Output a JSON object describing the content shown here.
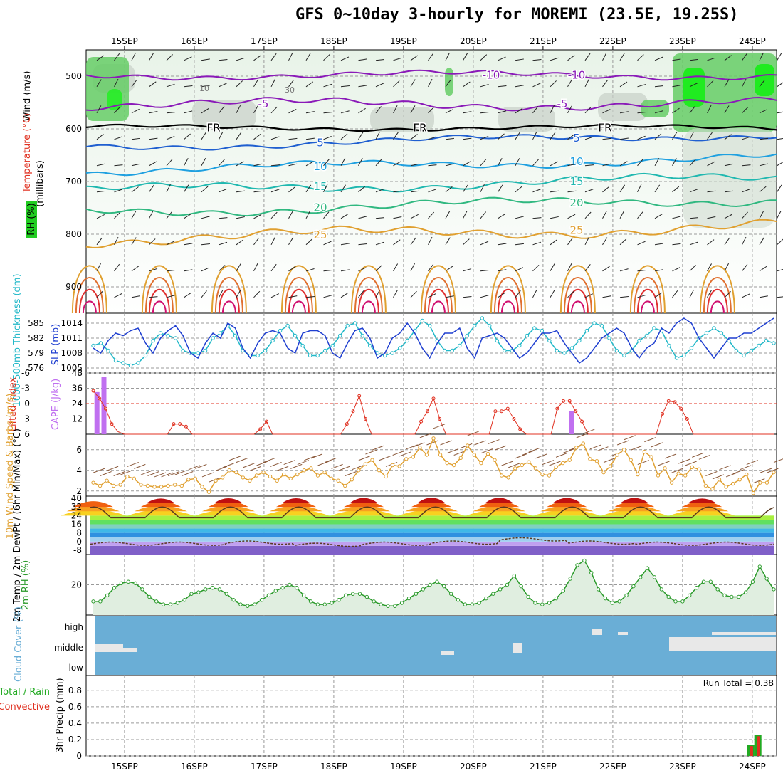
{
  "title": "GFS 0~10day 3-hourly for MOREMI (23.5E, 19.25S)",
  "colors": {
    "rh_green": "#22cc22",
    "rh_gray": "#bbbbbb",
    "slp": "#1f3fd0",
    "thickness": "#22b8c8",
    "lifted_index": "#e03020",
    "cape": "#c070f0",
    "wind": "#e0a030",
    "rh2m": "#2a9a2a",
    "cloud": "#6aaed6",
    "precip_total": "#22aa22",
    "precip_conv": "#e03020"
  },
  "chart_data": [
    {
      "id": "upper-air",
      "type": "contour",
      "x_dates": [
        "15SEP",
        "16SEP",
        "17SEP",
        "18SEP",
        "19SEP",
        "20SEP",
        "21SEP",
        "22SEP",
        "23SEP",
        "24SEP"
      ],
      "y_ticks": [
        500,
        600,
        700,
        800,
        900
      ],
      "ylim": [
        450,
        950
      ],
      "ylabel": "(millibars)",
      "legend": [
        "Wind (m/s)",
        "Temperature (°C)",
        "RH (%)"
      ],
      "temperature_contours": [
        {
          "label": "-10",
          "color": "#8a1ab8",
          "p0": 498,
          "wave": 6
        },
        {
          "label": "-5",
          "color": "#8a1ab8",
          "p0": 553,
          "wave": 8
        },
        {
          "label": "FR",
          "color": "#000000",
          "p0": 598,
          "wave": 4
        },
        {
          "label": "5",
          "color": "#1f5fd0",
          "p0": 635,
          "wave": 6
        },
        {
          "label": "10",
          "color": "#1fa0e0",
          "p0": 680,
          "wave": 7
        },
        {
          "label": "15",
          "color": "#20b8b0",
          "p0": 718,
          "wave": 8
        },
        {
          "label": "20",
          "color": "#30b880",
          "p0": 758,
          "wave": 8
        },
        {
          "label": "25",
          "color": "#e0a030",
          "p0": 810,
          "wave": 10
        }
      ],
      "rh_labels": [
        "10",
        "30"
      ]
    },
    {
      "id": "slp-thickness",
      "type": "line",
      "ylabel": "SLP (mb)",
      "y2label": "1000-500mb Thickness (dm)",
      "yticks": [
        1005,
        1008,
        1011,
        1014
      ],
      "y2ticks": [
        576,
        579,
        582,
        585
      ],
      "ylim": [
        1004,
        1016
      ],
      "y2lim": [
        574.5,
        586.5
      ],
      "series": [
        {
          "name": "SLP",
          "values": [
            1009,
            1008,
            1010.5,
            1012,
            1011.5,
            1012.5,
            1013,
            1010,
            1008,
            1011,
            1012.5,
            1013.5,
            1011.5,
            1008,
            1007,
            1010,
            1012,
            1011,
            1014,
            1013,
            1009,
            1007,
            1010,
            1012,
            1012.5,
            1012,
            1009,
            1008,
            1012,
            1012.5,
            1012.5,
            1011.5,
            1008,
            1007,
            1010,
            1012.5,
            1013,
            1011,
            1007,
            1008,
            1011,
            1012,
            1014,
            1012,
            1009,
            1007,
            1010,
            1012,
            1012,
            1013,
            1009,
            1007,
            1011,
            1011.5,
            1012,
            1011,
            1009,
            1007,
            1008,
            1010,
            1012,
            1012,
            1012.5,
            1010,
            1008,
            1006,
            1007,
            1009,
            1011,
            1012,
            1013,
            1012,
            1009,
            1007,
            1009,
            1010,
            1013,
            1012,
            1014,
            1015,
            1014,
            1011,
            1009,
            1007,
            1009,
            1011,
            1011,
            1012,
            1012,
            1013,
            1014,
            1015
          ]
        },
        {
          "name": "Thickness",
          "values": [
            580,
            580.5,
            579,
            577,
            576.5,
            576,
            576.5,
            578,
            581,
            582.5,
            582,
            581.5,
            579,
            578.5,
            578.5,
            579,
            581.5,
            582.5,
            584,
            582,
            579,
            578,
            578,
            579,
            581,
            583,
            584,
            582,
            580,
            578,
            578,
            579,
            580,
            582,
            584,
            584.5,
            582,
            580,
            578.5,
            578,
            578.5,
            579.5,
            581,
            583,
            585,
            584,
            581,
            579,
            579,
            580,
            582,
            584,
            585.5,
            584,
            581,
            579,
            579,
            580,
            582,
            583.5,
            583,
            581,
            579,
            578.5,
            579.5,
            581,
            583,
            584.5,
            584,
            581.5,
            579,
            578,
            579,
            581,
            582,
            583.5,
            583,
            580,
            577.5,
            578,
            579.5,
            581.5,
            582.5,
            583.5,
            582.5,
            581,
            579,
            578,
            579,
            580,
            581,
            580.5
          ]
        }
      ]
    },
    {
      "id": "lifted-index-cape",
      "type": "line+bar",
      "ylabel": "Lifted Index",
      "y2label": "CAPE (J/kg)",
      "yticks": [
        -6,
        -3,
        0,
        3,
        6
      ],
      "ytick_labels": [
        "-6",
        "-3",
        "0",
        "3",
        "6"
      ],
      "y2ticks": [
        12,
        24,
        36,
        48
      ],
      "ylim": [
        -6,
        6
      ],
      "y2lim": [
        0,
        48
      ],
      "lifted_index": [
        -2.5,
        -1,
        1,
        4,
        5.5,
        6,
        6,
        6,
        6,
        6,
        6,
        6,
        6,
        4,
        4,
        4.5,
        6,
        6,
        6,
        6,
        6,
        6,
        6,
        6,
        6,
        6,
        6,
        5,
        3.5,
        6,
        6,
        6,
        6,
        6,
        6,
        6,
        6,
        6,
        6,
        6,
        6,
        4,
        1.5,
        -1.5,
        3,
        6,
        6,
        6,
        6,
        6,
        6,
        6,
        6,
        3.5,
        1.5,
        -1,
        3,
        6,
        6,
        6,
        6,
        6,
        6,
        6,
        6,
        1.5,
        1.5,
        1,
        3,
        5,
        6,
        6,
        6,
        6,
        6,
        1,
        -0.5,
        -0.5,
        1.5,
        3.5,
        6,
        6,
        6,
        6,
        6,
        6,
        6,
        6,
        6,
        6,
        6,
        6,
        2,
        -0.5,
        -0.3,
        1,
        3,
        6,
        6,
        6,
        6,
        6,
        6,
        6,
        6,
        6,
        6,
        6,
        6,
        6,
        6
      ],
      "cape": [
        {
          "x_day": 14.6,
          "value": 33
        },
        {
          "x_day": 14.7,
          "value": 45
        },
        {
          "x_day": 21.4,
          "value": 18
        }
      ]
    },
    {
      "id": "wind-10m",
      "type": "line",
      "ylabel": "10m Wind Speed & Barbs (m/s)",
      "yticks": [
        2,
        4,
        6
      ],
      "ylim": [
        1.5,
        7.5
      ],
      "values": [
        2.8,
        2.5,
        3,
        2.5,
        2.6,
        3.4,
        3.2,
        2.6,
        2.5,
        2.4,
        2.4,
        2.5,
        2.6,
        2.5,
        3.1,
        3.2,
        2.4,
        1.9,
        3,
        3.3,
        4,
        3.8,
        3.3,
        3,
        3.5,
        3.8,
        3.4,
        3,
        3.6,
        3.2,
        3.6,
        4,
        4.2,
        3.5,
        3.8,
        3.2,
        3,
        2.5,
        3.1,
        4,
        4.6,
        5,
        4,
        3.4,
        4.5,
        4.4,
        5.1,
        5.3,
        6.2,
        5.5,
        7.1,
        5.5,
        4.7,
        4.5,
        5.2,
        6.4,
        5.5,
        4.7,
        5.6,
        5,
        3.5,
        3.3,
        4.2,
        4.5,
        4.8,
        4.2,
        3.6,
        3.5,
        4.3,
        4.7,
        5,
        6.2,
        6.6,
        5.1,
        4.9,
        3.8,
        4.4,
        5.5,
        6,
        5,
        3.6,
        5.8,
        5.3,
        3.5,
        4.2,
        2.8,
        3.7,
        3.5,
        4.3,
        4.1,
        2.5,
        2.2,
        3.1,
        2.4,
        2.7,
        3.1,
        3.6,
        1.8,
        2.8,
        2.8,
        3.8
      ]
    },
    {
      "id": "temp-2m",
      "type": "area",
      "ylabel": "2m Temp / 2m DewPt / (6hr Min/Max) (°C)",
      "yticks": [
        -8,
        0,
        8,
        16,
        24,
        32,
        40
      ],
      "ylim": [
        -12,
        42
      ],
      "temp_max": [
        36,
        37,
        37.5,
        37.5,
        38,
        38.5,
        38.5,
        38,
        38,
        37
      ],
      "temp_min": [
        21,
        21,
        21,
        21,
        21,
        21,
        21,
        21,
        21,
        21
      ],
      "dewpoint_mean": [
        -2,
        -2,
        -1,
        -3,
        -2,
        -1,
        2,
        -1,
        -2,
        -2
      ]
    },
    {
      "id": "rh-2m",
      "type": "area",
      "ylabel": "2m RH (%)",
      "yticks": [
        20
      ],
      "ylim": [
        0,
        40
      ],
      "values": [
        9,
        9,
        13,
        18,
        21,
        22,
        21,
        17,
        12,
        9,
        7,
        7,
        8,
        10,
        14,
        15,
        17,
        18,
        17,
        14,
        10,
        7,
        6,
        7,
        10,
        13,
        16,
        18,
        20,
        18,
        13,
        9,
        7,
        7,
        8,
        10,
        13,
        14,
        14,
        12,
        9,
        7,
        6,
        6,
        8,
        11,
        14,
        17,
        20,
        22,
        19,
        14,
        10,
        7,
        7,
        8,
        11,
        14,
        17,
        20,
        26,
        19,
        12,
        8,
        7,
        8,
        11,
        16,
        24,
        33,
        36,
        28,
        17,
        11,
        8,
        9,
        13,
        19,
        25,
        31,
        25,
        17,
        12,
        9,
        9,
        13,
        18,
        22,
        22,
        17,
        13,
        12,
        12,
        15,
        22,
        32,
        24,
        17
      ]
    },
    {
      "id": "cloud-cover",
      "type": "layers",
      "ylabel": "Cloud Cover (%)",
      "ytick_labels": [
        "high",
        "middle",
        "low"
      ],
      "values": "fully overcast low layer, intermittent middle gaps"
    },
    {
      "id": "precip-3hr",
      "type": "bar",
      "ylabel": "3hr Precip (mm)",
      "legend": [
        "Total / Rain",
        "Convective"
      ],
      "yticks": [
        0,
        0.2,
        0.4,
        0.6,
        0.8
      ],
      "ytick_labels": [
        "0",
        "0.2",
        "0.4",
        "0.6",
        "0.8"
      ],
      "ylim": [
        0,
        0.98
      ],
      "bars": [
        {
          "x_day": 24.0,
          "total": 0.13,
          "convective": 0.12
        },
        {
          "x_day": 24.1,
          "total": 0.26,
          "convective": 0.24
        }
      ],
      "run_total": "Run Total = 0.38"
    }
  ]
}
